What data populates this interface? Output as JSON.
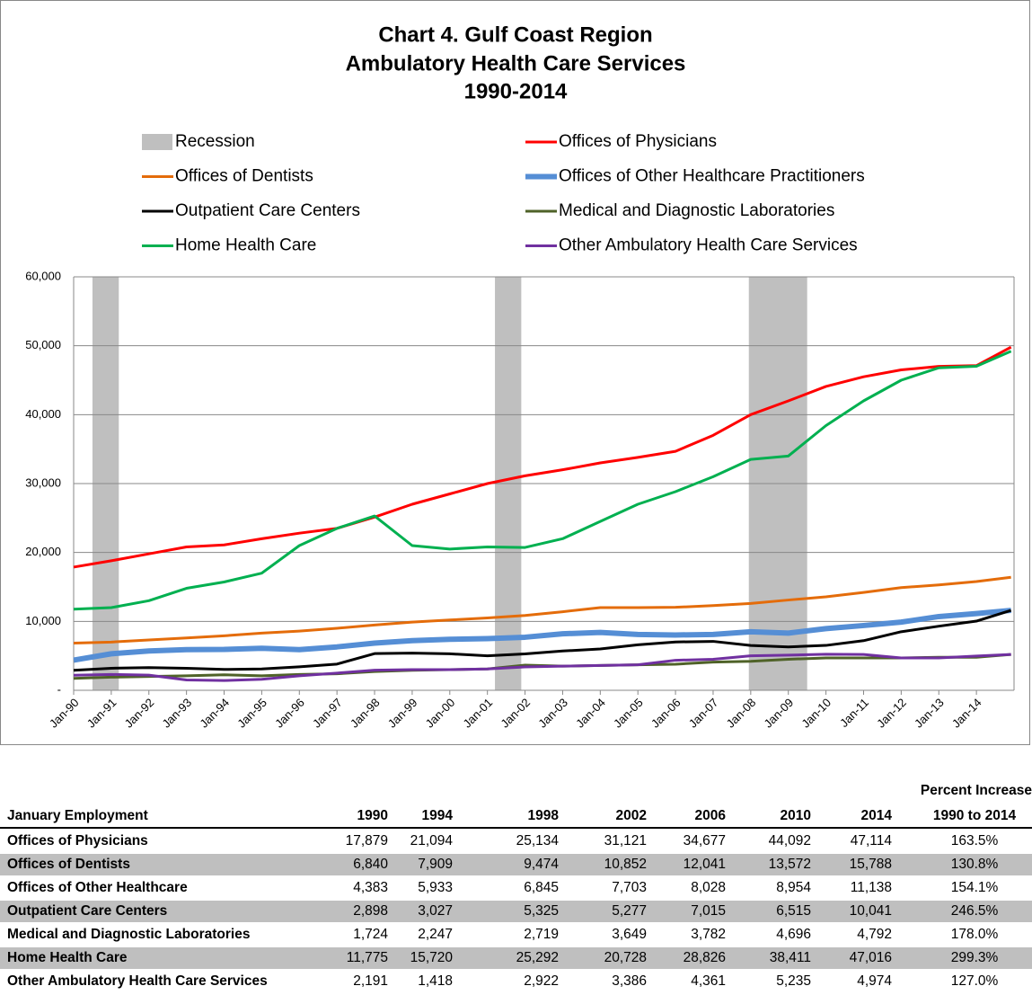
{
  "chart_data": {
    "type": "line",
    "title": [
      "Chart 4. Gulf Coast Region",
      "Ambulatory Health Care Services",
      "1990-2014"
    ],
    "x": [
      1990,
      1991,
      1992,
      1993,
      1994,
      1995,
      1996,
      1997,
      1998,
      1999,
      2000,
      2001,
      2002,
      2003,
      2004,
      2005,
      2006,
      2007,
      2008,
      2009,
      2010,
      2011,
      2012,
      2013,
      2014,
      2014.92
    ],
    "xlim": [
      1990,
      2015
    ],
    "xticks": [
      {
        "value": 1990,
        "label": "Jan-90"
      },
      {
        "value": 1991,
        "label": "Jan-91"
      },
      {
        "value": 1992,
        "label": "Jan-92"
      },
      {
        "value": 1993,
        "label": "Jan-93"
      },
      {
        "value": 1994,
        "label": "Jan-94"
      },
      {
        "value": 1995,
        "label": "Jan-95"
      },
      {
        "value": 1996,
        "label": "Jan-96"
      },
      {
        "value": 1997,
        "label": "Jan-97"
      },
      {
        "value": 1998,
        "label": "Jan-98"
      },
      {
        "value": 1999,
        "label": "Jan-99"
      },
      {
        "value": 2000,
        "label": "Jan-00"
      },
      {
        "value": 2001,
        "label": "Jan-01"
      },
      {
        "value": 2002,
        "label": "Jan-02"
      },
      {
        "value": 2003,
        "label": "Jan-03"
      },
      {
        "value": 2004,
        "label": "Jan-04"
      },
      {
        "value": 2005,
        "label": "Jan-05"
      },
      {
        "value": 2006,
        "label": "Jan-06"
      },
      {
        "value": 2007,
        "label": "Jan-07"
      },
      {
        "value": 2008,
        "label": "Jan-08"
      },
      {
        "value": 2009,
        "label": "Jan-09"
      },
      {
        "value": 2010,
        "label": "Jan-10"
      },
      {
        "value": 2011,
        "label": "Jan-11"
      },
      {
        "value": 2012,
        "label": "Jan-12"
      },
      {
        "value": 2013,
        "label": "Jan-13"
      },
      {
        "value": 2014,
        "label": "Jan-14"
      }
    ],
    "ylim": [
      0,
      60000
    ],
    "yticks": [
      {
        "value": 0,
        "label": "-"
      },
      {
        "value": 10000,
        "label": "10,000"
      },
      {
        "value": 20000,
        "label": "20,000"
      },
      {
        "value": 30000,
        "label": "30,000"
      },
      {
        "value": 40000,
        "label": "40,000"
      },
      {
        "value": 50000,
        "label": "50,000"
      },
      {
        "value": 60000,
        "label": "60,000"
      }
    ],
    "grid": true,
    "recession": {
      "name": "Recession",
      "color": "#bfbfbf",
      "spans": [
        [
          1990.5,
          1991.2
        ],
        [
          2001.2,
          2001.9
        ],
        [
          2007.95,
          2009.5
        ]
      ]
    },
    "series": [
      {
        "name": "Offices of Physicians",
        "color": "#ff0000",
        "width": 3,
        "values": [
          17879,
          18800,
          19800,
          20800,
          21094,
          22000,
          22800,
          23500,
          25134,
          27000,
          28500,
          30000,
          31121,
          32000,
          33000,
          33800,
          34677,
          37000,
          40000,
          42000,
          44092,
          45500,
          46500,
          47000,
          47114,
          49800
        ]
      },
      {
        "name": "Offices of Dentists",
        "color": "#e46c0a",
        "width": 3,
        "values": [
          6840,
          7000,
          7300,
          7600,
          7909,
          8300,
          8600,
          9000,
          9474,
          9900,
          10200,
          10500,
          10852,
          11400,
          12000,
          12000,
          12041,
          12300,
          12600,
          13100,
          13572,
          14200,
          14900,
          15300,
          15788,
          16400
        ]
      },
      {
        "name": "Offices of Other Healthcare Practitioners",
        "color": "#558ed5",
        "width": 6,
        "values": [
          4383,
          5300,
          5700,
          5900,
          5933,
          6100,
          5900,
          6300,
          6845,
          7200,
          7400,
          7500,
          7703,
          8200,
          8400,
          8100,
          8028,
          8100,
          8500,
          8300,
          8954,
          9400,
          9900,
          10700,
          11138,
          11600
        ]
      },
      {
        "name": "Outpatient Care Centers",
        "color": "#000000",
        "width": 3,
        "values": [
          2898,
          3200,
          3300,
          3200,
          3027,
          3100,
          3400,
          3800,
          5325,
          5400,
          5300,
          5000,
          5277,
          5700,
          6000,
          6600,
          7015,
          7100,
          6500,
          6300,
          6515,
          7200,
          8500,
          9300,
          10041,
          11600
        ]
      },
      {
        "name": "Medical and Diagnostic Laboratories",
        "color": "#4f6228",
        "width": 3,
        "values": [
          1724,
          1900,
          2000,
          2100,
          2247,
          2100,
          2300,
          2400,
          2719,
          2900,
          3000,
          3100,
          3649,
          3500,
          3600,
          3700,
          3782,
          4100,
          4200,
          4500,
          4696,
          4700,
          4700,
          4800,
          4792,
          5200
        ]
      },
      {
        "name": "Home Health Care",
        "color": "#00b050",
        "width": 3,
        "values": [
          11775,
          12000,
          13000,
          14800,
          15720,
          17000,
          21000,
          23500,
          25292,
          21000,
          20500,
          20800,
          20728,
          22000,
          24500,
          27000,
          28826,
          31000,
          33500,
          34000,
          38411,
          42000,
          45000,
          46800,
          47016,
          49200
        ]
      },
      {
        "name": "Other Ambulatory Health Care Services",
        "color": "#7030a0",
        "width": 3,
        "values": [
          2191,
          2300,
          2200,
          1500,
          1418,
          1600,
          2100,
          2500,
          2922,
          3000,
          3000,
          3100,
          3386,
          3500,
          3600,
          3700,
          4361,
          4500,
          5000,
          5100,
          5235,
          5200,
          4700,
          4700,
          4974,
          5200
        ]
      }
    ]
  },
  "table": {
    "header_above": "Percent Increase",
    "columns": [
      "January Employment",
      "1990",
      "1994",
      "1998",
      "2002",
      "2006",
      "2010",
      "2014",
      "1990 to 2014"
    ],
    "rows": [
      [
        "Offices of Physicians",
        "17,879",
        "21,094",
        "25,134",
        "31,121",
        "34,677",
        "44,092",
        "47,114",
        "163.5%"
      ],
      [
        "Offices of Dentists",
        "6,840",
        "7,909",
        "9,474",
        "10,852",
        "12,041",
        "13,572",
        "15,788",
        "130.8%"
      ],
      [
        "Offices of Other Healthcare",
        "4,383",
        "5,933",
        "6,845",
        "7,703",
        "8,028",
        "8,954",
        "11,138",
        "154.1%"
      ],
      [
        "Outpatient Care Centers",
        "2,898",
        "3,027",
        "5,325",
        "5,277",
        "7,015",
        "6,515",
        "10,041",
        "246.5%"
      ],
      [
        "Medical and Diagnostic Laboratories",
        "1,724",
        "2,247",
        "2,719",
        "3,649",
        "3,782",
        "4,696",
        "4,792",
        "178.0%"
      ],
      [
        "Home Health Care",
        "11,775",
        "15,720",
        "25,292",
        "20,728",
        "28,826",
        "38,411",
        "47,016",
        "299.3%"
      ],
      [
        "Other Ambulatory Health Care Services",
        "2,191",
        "1,418",
        "2,922",
        "3,386",
        "4,361",
        "5,235",
        "4,974",
        "127.0%"
      ]
    ]
  }
}
